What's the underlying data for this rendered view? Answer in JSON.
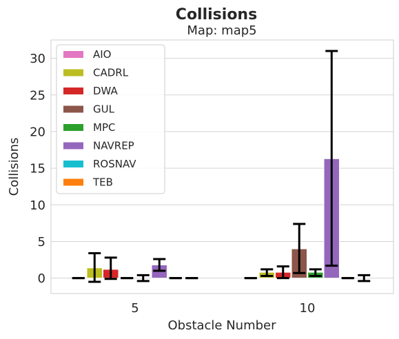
{
  "chart_data": {
    "type": "bar",
    "title": "Collisions",
    "subtitle": "Map: map5",
    "xlabel": "Obstacle Number",
    "ylabel": "Collisions",
    "categories": [
      "5",
      "10"
    ],
    "ylim": [
      -2.1,
      32.5
    ],
    "yticks": [
      0,
      5,
      10,
      15,
      20,
      25,
      30
    ],
    "grid": "horizontal",
    "legend_position": "top-left",
    "series": [
      {
        "name": "AIO",
        "color": "#e377c2",
        "values": [
          0.0,
          0.0
        ],
        "err_low": [
          0.0,
          0.0
        ],
        "err_high": [
          0.0,
          0.0
        ]
      },
      {
        "name": "CADRL",
        "color": "#bcbd22",
        "values": [
          1.4,
          0.8
        ],
        "err_low": [
          -0.5,
          0.3
        ],
        "err_high": [
          3.4,
          1.2
        ]
      },
      {
        "name": "DWA",
        "color": "#d62728",
        "values": [
          1.2,
          0.8
        ],
        "err_low": [
          -0.1,
          0.0
        ],
        "err_high": [
          2.8,
          1.6
        ]
      },
      {
        "name": "GUL",
        "color": "#8c564b",
        "values": [
          0.0,
          4.0
        ],
        "err_low": [
          0.0,
          0.7
        ],
        "err_high": [
          0.0,
          7.4
        ]
      },
      {
        "name": "MPC",
        "color": "#2ca02c",
        "values": [
          0.0,
          0.8
        ],
        "err_low": [
          -0.4,
          0.3
        ],
        "err_high": [
          0.4,
          1.2
        ]
      },
      {
        "name": "NAVREP",
        "color": "#9467bd",
        "values": [
          1.8,
          16.3
        ],
        "err_low": [
          1.0,
          1.7
        ],
        "err_high": [
          2.6,
          31.0
        ]
      },
      {
        "name": "ROSNAV",
        "color": "#17becf",
        "values": [
          0.0,
          0.0
        ],
        "err_low": [
          0.0,
          0.0
        ],
        "err_high": [
          0.0,
          0.0
        ]
      },
      {
        "name": "TEB",
        "color": "#ff7f0e",
        "values": [
          0.0,
          0.0
        ],
        "err_low": [
          0.0,
          -0.4
        ],
        "err_high": [
          0.0,
          0.4
        ]
      }
    ]
  }
}
